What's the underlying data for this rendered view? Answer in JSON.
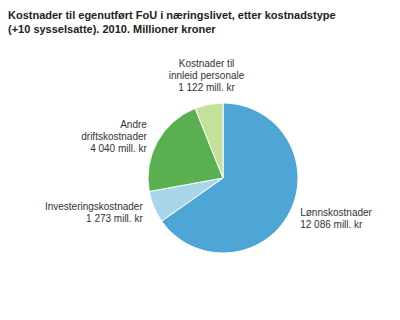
{
  "chart_data": {
    "type": "pie",
    "title": "Kostnader til egenutført FoU i næringslivet, etter kostnadstype",
    "subtitle": "(+10 sysselsatte). 2010. Millioner kroner",
    "categories": [
      "Lønnskostnader",
      "Investeringskostnader",
      "Andre\ndriftskostnader",
      "Kostnader til\ninnleid personale"
    ],
    "values": [
      12086,
      1273,
      4040,
      1122
    ],
    "value_labels": [
      "12 086 mill. kr",
      "1 273 mill. kr",
      "4 040 mill. kr",
      "1 122 mill. kr"
    ],
    "colors": [
      "#4DA6D6",
      "#A8D5E8",
      "#5AAF50",
      "#C5E09A"
    ],
    "data_labels": true
  }
}
